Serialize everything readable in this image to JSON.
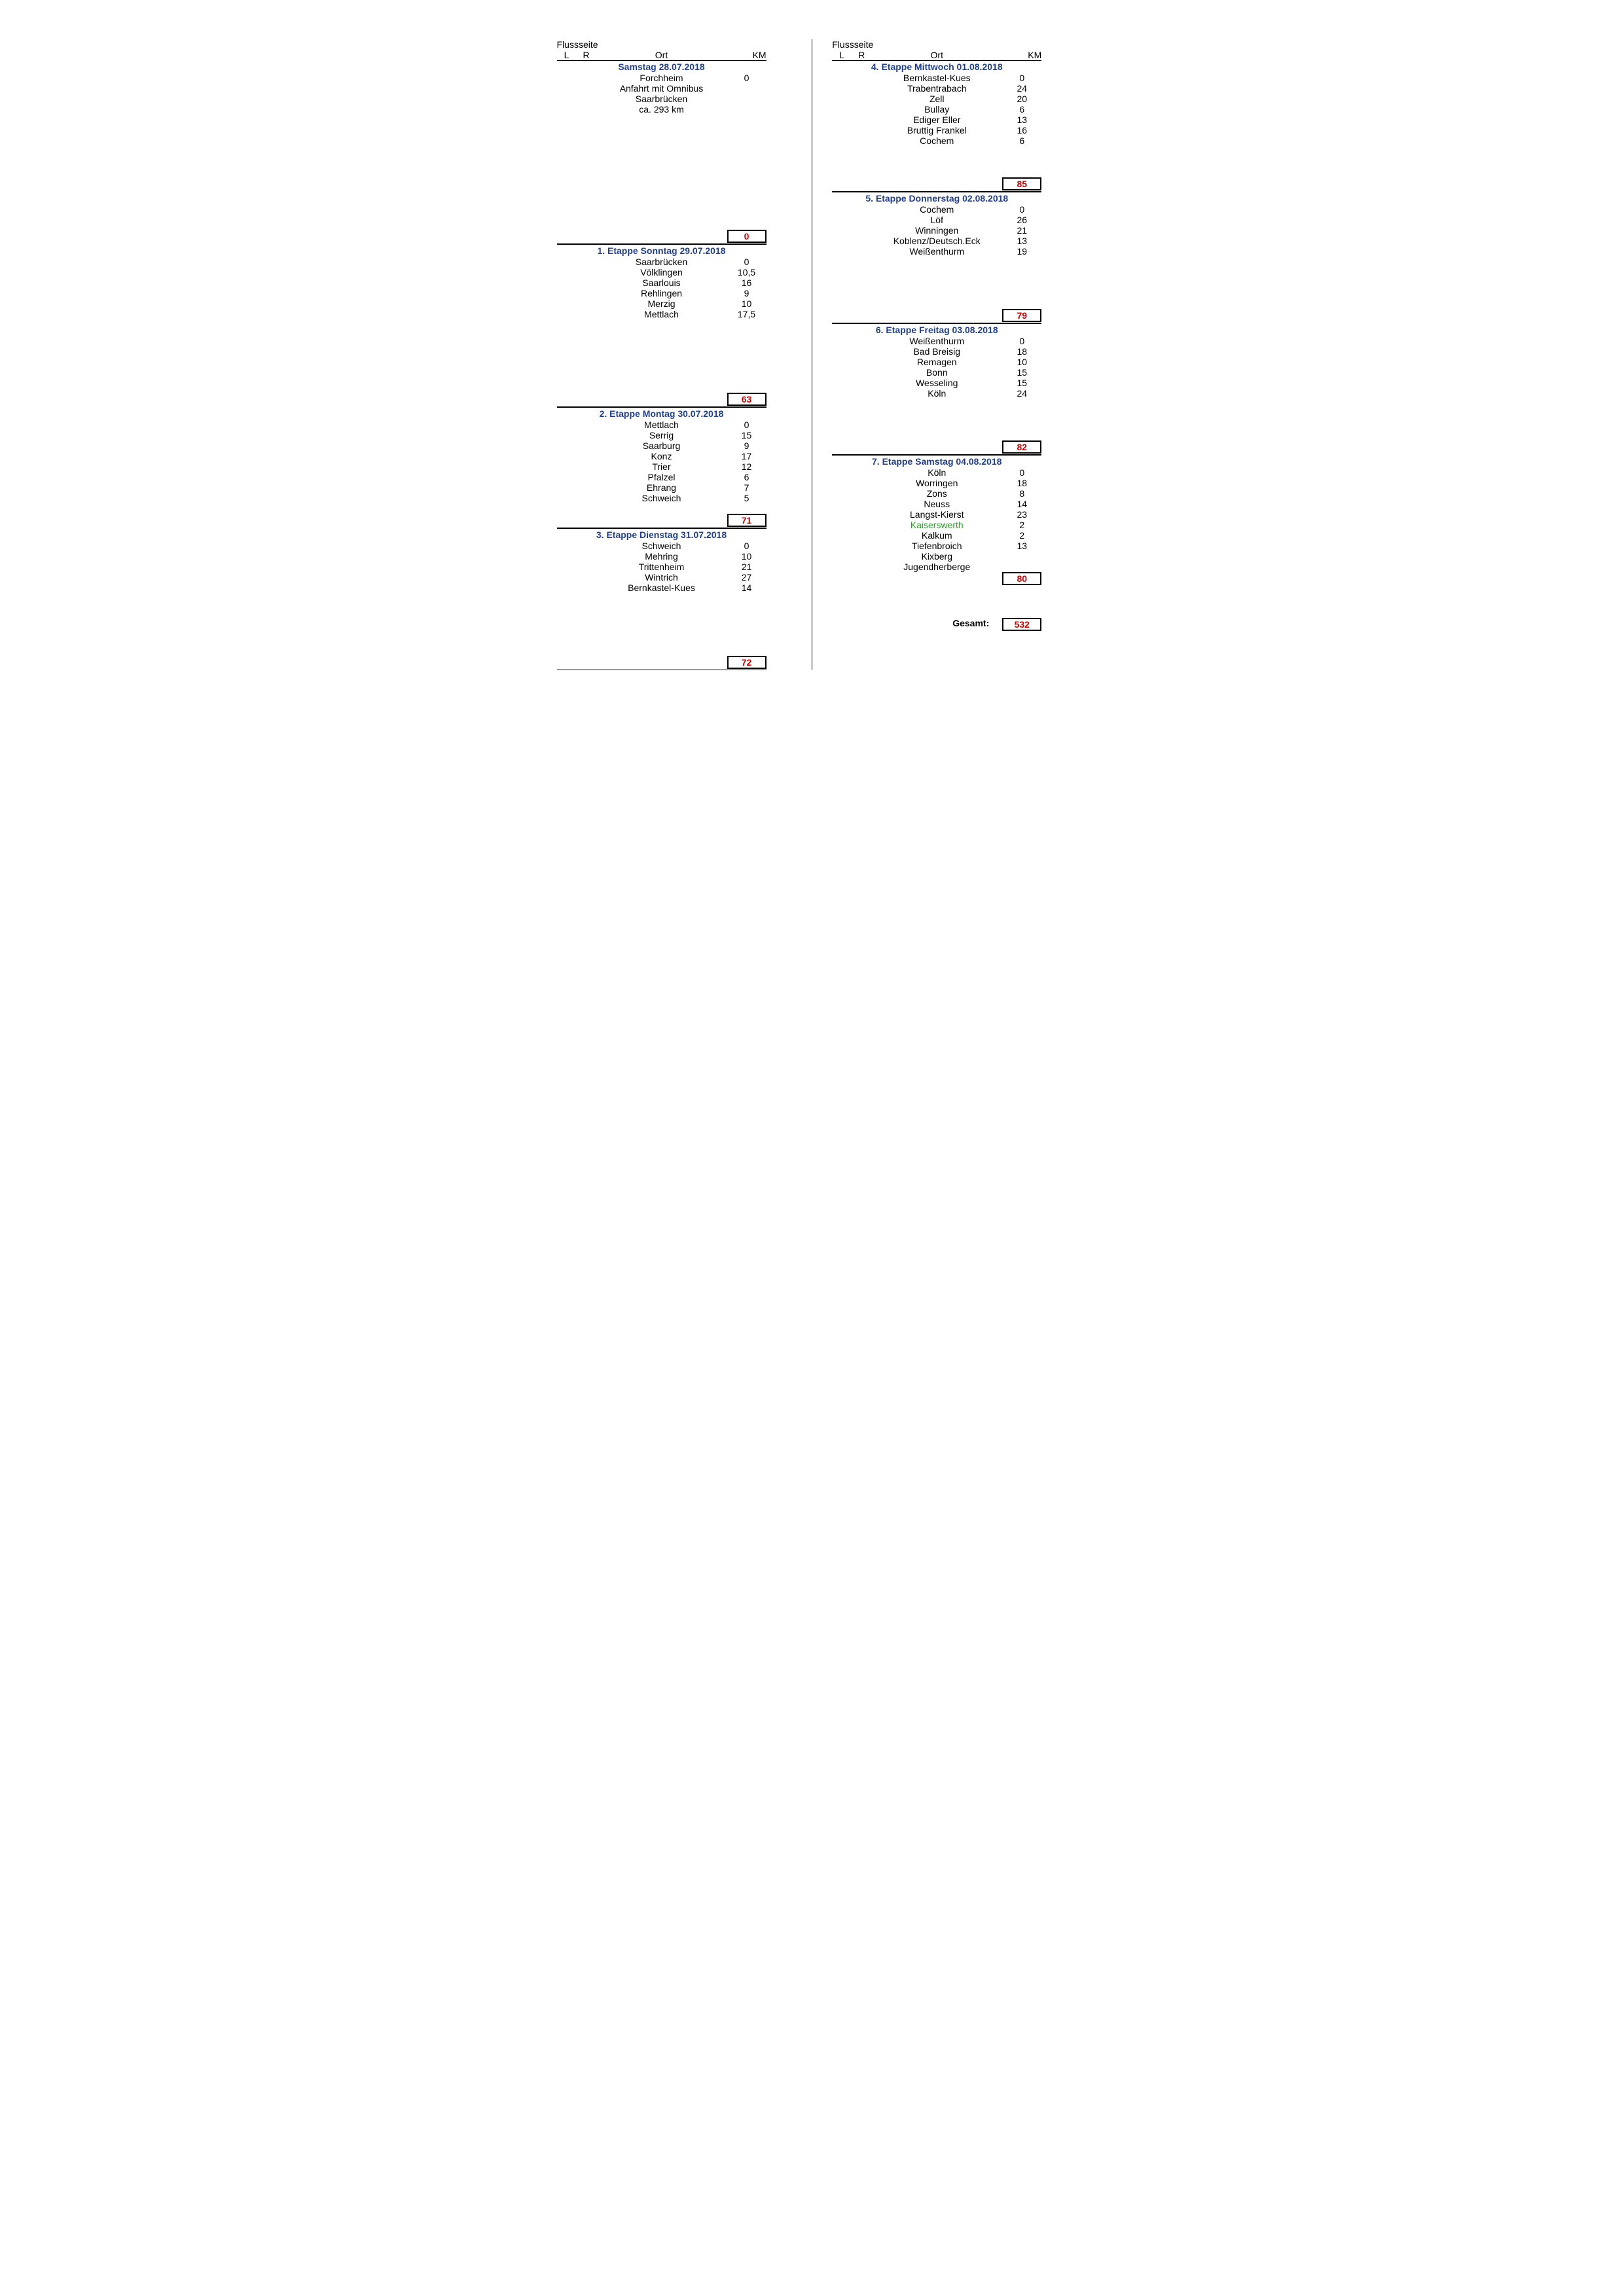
{
  "headers": {
    "flussseite": "Flussseite",
    "L": "L",
    "R": "R",
    "ort": "Ort",
    "km": "KM"
  },
  "left_sections": [
    {
      "title": "Samstag 28.07.2018",
      "no_top_border": true,
      "rows": [
        {
          "ort": "Forchheim",
          "km": "0"
        },
        {
          "ort": "Anfahrt mit Omnibus",
          "km": ""
        },
        {
          "ort": "Saarbrücken",
          "km": ""
        },
        {
          "ort": "ca. 293 km",
          "km": ""
        }
      ],
      "spacers": 11,
      "total": "0"
    },
    {
      "title": "1. Etappe Sonntag 29.07.2018",
      "rows": [
        {
          "ort": "Saarbrücken",
          "km": "0"
        },
        {
          "ort": "Völklingen",
          "km": "10,5"
        },
        {
          "ort": "Saarlouis",
          "km": "16"
        },
        {
          "ort": "Rehlingen",
          "km": "9"
        },
        {
          "ort": "Merzig",
          "km": "10"
        },
        {
          "ort": "Mettlach",
          "km": "17,5"
        }
      ],
      "spacers": 7,
      "total": "63"
    },
    {
      "title": "2. Etappe Montag 30.07.2018",
      "rows": [
        {
          "ort": "Mettlach",
          "km": "0"
        },
        {
          "ort": "Serrig",
          "km": "15"
        },
        {
          "ort": "Saarburg",
          "km": "9"
        },
        {
          "ort": "Konz",
          "km": "17"
        },
        {
          "ort": "Trier",
          "km": "12"
        },
        {
          "ort": "Pfalzel",
          "km": "6"
        },
        {
          "ort": "Ehrang",
          "km": "7"
        },
        {
          "ort": "Schweich",
          "km": "5"
        }
      ],
      "spacers": 1,
      "total": "71"
    },
    {
      "title": "3. Etappe Dienstag 31.07.2018",
      "rows": [
        {
          "ort": "Schweich",
          "km": "0"
        },
        {
          "ort": "Mehring",
          "km": "10"
        },
        {
          "ort": "Trittenheim",
          "km": "21"
        },
        {
          "ort": "Wintrich",
          "km": "27"
        },
        {
          "ort": "Bernkastel-Kues",
          "km": "14"
        }
      ],
      "spacers": 6,
      "total": "72"
    }
  ],
  "right_sections": [
    {
      "title": "4. Etappe Mittwoch 01.08.2018",
      "no_top_border": true,
      "rows": [
        {
          "ort": "Bernkastel-Kues",
          "km": "0"
        },
        {
          "ort": "Trabentrabach",
          "km": "24"
        },
        {
          "ort": "Zell",
          "km": "20"
        },
        {
          "ort": "Bullay",
          "km": "6"
        },
        {
          "ort": "Ediger Eller",
          "km": "13"
        },
        {
          "ort": "Bruttig Frankel",
          "km": "16"
        },
        {
          "ort": "Cochem",
          "km": "6"
        }
      ],
      "spacers": 3,
      "total": "85"
    },
    {
      "title": "5. Etappe Donnerstag 02.08.2018",
      "rows": [
        {
          "ort": "Cochem",
          "km": "0"
        },
        {
          "ort": "Löf",
          "km": "26"
        },
        {
          "ort": "Winningen",
          "km": "21"
        },
        {
          "ort": "Koblenz/Deutsch.Eck",
          "km": "13"
        },
        {
          "ort": "Weißenthurm",
          "km": "19"
        }
      ],
      "spacers": 5,
      "total": "79"
    },
    {
      "title": "6. Etappe Freitag 03.08.2018",
      "rows": [
        {
          "ort": "Weißenthurm",
          "km": "0"
        },
        {
          "ort": "Bad Breisig",
          "km": "18"
        },
        {
          "ort": "Remagen",
          "km": "10"
        },
        {
          "ort": "Bonn",
          "km": "15"
        },
        {
          "ort": "Wesseling",
          "km": "15"
        },
        {
          "ort": "Köln",
          "km": "24"
        }
      ],
      "spacers": 4,
      "total": "82"
    },
    {
      "title": "7. Etappe Samstag 04.08.2018",
      "rows": [
        {
          "ort": "Köln",
          "km": "0"
        },
        {
          "ort": "Worringen",
          "km": "18"
        },
        {
          "ort": "Zons",
          "km": "8"
        },
        {
          "ort": "Neuss",
          "km": "14"
        },
        {
          "ort": "Langst-Kierst",
          "km": "23"
        },
        {
          "ort": "Kaiserswerth",
          "km": "2",
          "green": true
        },
        {
          "ort": "Kalkum",
          "km": "2"
        },
        {
          "ort": "Tiefenbroich",
          "km": "13"
        },
        {
          "ort": "Kixberg",
          "km": ""
        },
        {
          "ort": "Jugendherberge",
          "km": ""
        }
      ],
      "spacers": 0,
      "total": "80",
      "no_bottom_line": true
    }
  ],
  "gesamt": {
    "label": "Gesamt:",
    "value": "532"
  }
}
